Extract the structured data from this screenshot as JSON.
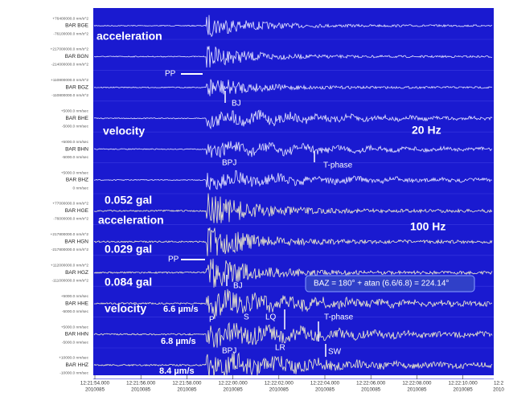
{
  "channels": [
    {
      "name": "BAR BGE",
      "scale_top": "+76400000.0 nm/s^2",
      "scale_bottom": "-76100000.0 nm/s^2"
    },
    {
      "name": "BAR BGN",
      "scale_top": "+217000000.0 nm/s^2",
      "scale_bottom": "-214000000.0 nm/s^2"
    },
    {
      "name": "BAR BGZ",
      "scale_top": "+110800000.0 nm/s^2",
      "scale_bottom": "-110800000.0 nm/s^2"
    },
    {
      "name": "BAR BHE",
      "scale_top": "+5000.0 nm/sec",
      "scale_bottom": "-5000.0 nm/sec"
    },
    {
      "name": "BAR BHN",
      "scale_top": "+5000.0 nm/sec",
      "scale_bottom": "-5000.0 nm/sec"
    },
    {
      "name": "BAR BHZ",
      "scale_top": "+5000.0 nm/sec",
      "scale_bottom": "0 nm/sec"
    },
    {
      "name": "BAR HGE",
      "scale_top": "+77000000.0 nm/s^2",
      "scale_bottom": "-76000000.0 nm/s^2"
    },
    {
      "name": "BAR HGN",
      "scale_top": "+217800000.0 nm/s^2",
      "scale_bottom": "-217800000.0 nm/s^2"
    },
    {
      "name": "BAR HGZ",
      "scale_top": "+112000000.0 nm/s^2",
      "scale_bottom": "-111000000.0 nm/s^2"
    },
    {
      "name": "BAR HHE",
      "scale_top": "+5000.0 nm/sec",
      "scale_bottom": "-5000.0 nm/sec"
    },
    {
      "name": "BAR HHN",
      "scale_top": "+5000.0 nm/sec",
      "scale_bottom": "-5000.0 nm/sec"
    },
    {
      "name": "BAR HHZ",
      "scale_top": "+10000.0 nm/sec",
      "scale_bottom": "-10000.0 nm/sec"
    }
  ],
  "time_axis": [
    {
      "time": "12:21:54.000",
      "date": "2010085"
    },
    {
      "time": "12:21:56.000",
      "date": "2010085"
    },
    {
      "time": "12:21:58.000",
      "date": "2010085"
    },
    {
      "time": "12:22:00.000",
      "date": "2010085"
    },
    {
      "time": "12:22:02.000",
      "date": "2010085"
    },
    {
      "time": "12:22:04.000",
      "date": "2010085"
    },
    {
      "time": "12:22:06.000",
      "date": "2010085"
    },
    {
      "time": "12:22:08.000",
      "date": "2010085"
    },
    {
      "time": "12:22:10.000",
      "date": "2010085"
    },
    {
      "time": "12:2",
      "date": "2010"
    }
  ],
  "annotations": [
    "acceleration",
    "velocity",
    "20 Hz",
    "0.052 gal",
    "acceleration",
    "100 Hz",
    "0.029 gal",
    "0.084 gal",
    "velocity",
    "6.6 µm/s",
    "6.8 µm/s",
    "8.4 µm/s",
    "PP",
    "BJ",
    "BPJ",
    "T-phase",
    "PP",
    "BJ",
    "BAZ = 180° + atan (6.6/6.8) = 224.14°",
    "P",
    "S",
    "LQ",
    "T-phase",
    "BPJ",
    "LR",
    "SW"
  ]
}
